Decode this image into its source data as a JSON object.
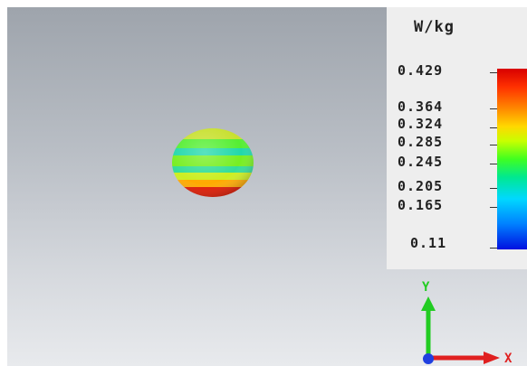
{
  "legend": {
    "unit": "W/kg",
    "ticks": [
      {
        "label": "0.429",
        "value": 0.429
      },
      {
        "label": "0.364",
        "value": 0.364
      },
      {
        "label": "0.324",
        "value": 0.324
      },
      {
        "label": "0.285",
        "value": 0.285
      },
      {
        "label": "0.245",
        "value": 0.245
      },
      {
        "label": "0.205",
        "value": 0.205
      },
      {
        "label": "0.165",
        "value": 0.165
      },
      {
        "label": "0.11",
        "value": 0.11
      }
    ],
    "colormap": [
      "#d80000",
      "#ff8800",
      "#ffd800",
      "#40ff20",
      "#00d8ff",
      "#0010e0"
    ]
  },
  "axes": {
    "y_label": "Y",
    "x_label": "X",
    "y_color": "#22cc22",
    "x_color": "#e02020",
    "z_color": "#2040e0"
  },
  "object": {
    "shape": "sphere",
    "band_colors": [
      "#d8e830",
      "#44ee33",
      "#22dd99",
      "#66ee33",
      "#ffb000",
      "#e01000"
    ]
  },
  "colors": {
    "background_top": "#9ea4ac",
    "background_bottom": "#e8eaed",
    "legend_panel": "#eeeeee"
  }
}
